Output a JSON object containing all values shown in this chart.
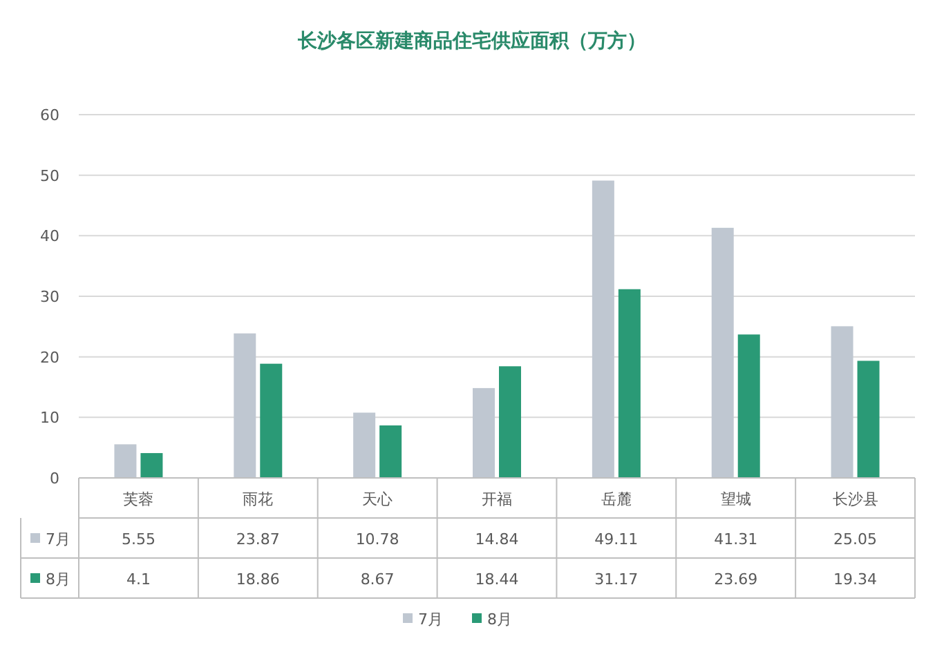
{
  "chart_data": {
    "type": "bar",
    "title": "长沙各区新建商品住宅供应面积（万方）",
    "categories": [
      "芙蓉",
      "雨花",
      "天心",
      "开福",
      "岳麓",
      "望城",
      "长沙县"
    ],
    "series": [
      {
        "name": "7月",
        "color": "#bfc7d1",
        "values": [
          5.55,
          23.87,
          10.78,
          14.84,
          49.11,
          41.31,
          25.05
        ]
      },
      {
        "name": "8月",
        "color": "#2a9a76",
        "values": [
          4.1,
          18.86,
          8.67,
          18.44,
          31.17,
          23.69,
          19.34
        ]
      }
    ],
    "ylim": [
      0,
      60
    ],
    "yticks": [
      0,
      10,
      20,
      30,
      40,
      50,
      60
    ],
    "grid": "y",
    "legend": "bottom",
    "data_labels": true
  }
}
